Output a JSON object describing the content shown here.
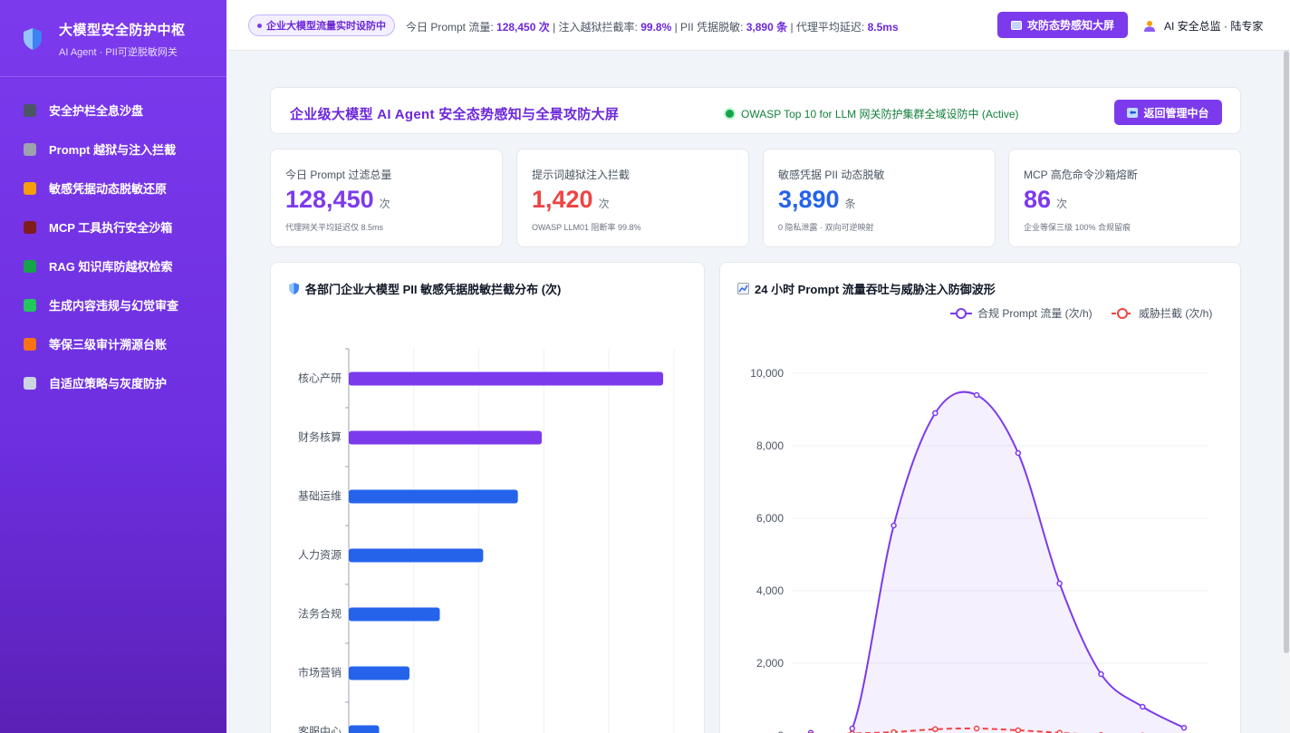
{
  "brand": {
    "title": "大模型安全防护中枢",
    "subtitle": "AI Agent · PII可逆脱敏网关"
  },
  "sidebar": {
    "items": [
      {
        "label": "安全护栏全息沙盘",
        "icon": "dashboard-icon",
        "color": "#4b5563"
      },
      {
        "label": "Prompt 越狱与注入拦截",
        "icon": "crossed-swords-icon",
        "color": "#9ca3af"
      },
      {
        "label": "敏感凭据动态脱敏还原",
        "icon": "mask-icon",
        "color": "#f59e0b"
      },
      {
        "label": "MCP 工具执行安全沙箱",
        "icon": "probe-icon",
        "color": "#7f1d1d"
      },
      {
        "label": "RAG 知识库防越权检索",
        "icon": "books-icon",
        "color": "#16a34a"
      },
      {
        "label": "生成内容违规与幻觉审查",
        "icon": "pencil-icon",
        "color": "#22c55e"
      },
      {
        "label": "等保三级审计溯源台账",
        "icon": "scroll-icon",
        "color": "#f97316"
      },
      {
        "label": "自适应策略与灰度防护",
        "icon": "gear-icon",
        "color": "#cbd5e1"
      }
    ]
  },
  "topbar": {
    "live_label": "企业大模型流量实时设防中",
    "stat1_label": "今日 Prompt 流量:",
    "stat1_value": "128,450 次",
    "stat2_label": "| 注入越狱拦截率:",
    "stat2_value": "99.8%",
    "stat3_label": "| PII 凭据脱敏:",
    "stat3_value": "3,890 条",
    "stat4_label": "| 代理平均延迟:",
    "stat4_value": "8.5ms",
    "screen_button": "攻防态势感知大屏",
    "user_label": "AI 安全总监 · 陆专家"
  },
  "header": {
    "title": "企业级大模型 AI Agent 安全态势感知与全景攻防大屏",
    "status": "OWASP Top 10 for LLM 网关防护集群全域设防中 (Active)",
    "back_button": "返回管理中台"
  },
  "kpis": [
    {
      "label": "今日 Prompt 过滤总量",
      "value": "128,450",
      "unit": "次",
      "note": "代理网关平均延迟仅 8.5ms",
      "color": "#7c3aed"
    },
    {
      "label": "提示词越狱注入拦截",
      "value": "1,420",
      "unit": "次",
      "note": "OWASP LLM01 阻断率 99.8%",
      "color": "#ef4444"
    },
    {
      "label": "敏感凭据 PII 动态脱敏",
      "value": "3,890",
      "unit": "条",
      "note": "0 隐私泄露 · 双向可逆映射",
      "color": "#2563eb"
    },
    {
      "label": "MCP 高危命令沙箱熔断",
      "value": "86",
      "unit": "次",
      "note": "企业等保三级 100% 合规留痕",
      "color": "#7c3aed"
    }
  ],
  "bar_panel": {
    "title": "各部门企业大模型 PII 敏感凭据脱敏拦截分布 (次)",
    "icon": "shield-icon"
  },
  "line_panel": {
    "title": "24 小时 Prompt 流量吞吐与威胁注入防御波形",
    "icon": "chart-icon"
  },
  "chart_data": [
    {
      "type": "bar",
      "orientation": "horizontal",
      "title": "各部门企业大模型 PII 敏感凭据脱敏拦截分布 (次)",
      "categories": [
        "核心产研",
        "财务核算",
        "基础运维",
        "人力资源",
        "法务合规",
        "市场营销",
        "客服中心"
      ],
      "values": [
        1450,
        890,
        780,
        620,
        420,
        280,
        140
      ],
      "colors": [
        "#7c3aed",
        "#7c3aed",
        "#2563eb",
        "#2563eb",
        "#2563eb",
        "#2563eb",
        "#2563eb"
      ],
      "xlim": [
        0,
        1500
      ]
    },
    {
      "type": "line",
      "title": "24 小时 Prompt 流量吞吐与威胁注入防御波形",
      "ylim": [
        0,
        10000
      ],
      "yticks": [
        0,
        2000,
        4000,
        6000,
        8000,
        10000
      ],
      "ytick_labels": [
        "0",
        "2,000",
        "4,000",
        "6,000",
        "8,000",
        "10,000"
      ],
      "legend_position": "top-right",
      "series": [
        {
          "name": "合规 Prompt 流量 (次/h)",
          "color": "#7c3aed",
          "dashed": false,
          "area": true,
          "values": [
            80,
            200,
            5800,
            8900,
            9400,
            7800,
            4200,
            1700,
            800,
            220
          ]
        },
        {
          "name": "威胁拦截 (次/h)",
          "color": "#ef4444",
          "dashed": true,
          "area": false,
          "values": [
            20,
            60,
            100,
            180,
            200,
            150,
            80,
            20,
            5,
            0
          ]
        }
      ]
    }
  ]
}
